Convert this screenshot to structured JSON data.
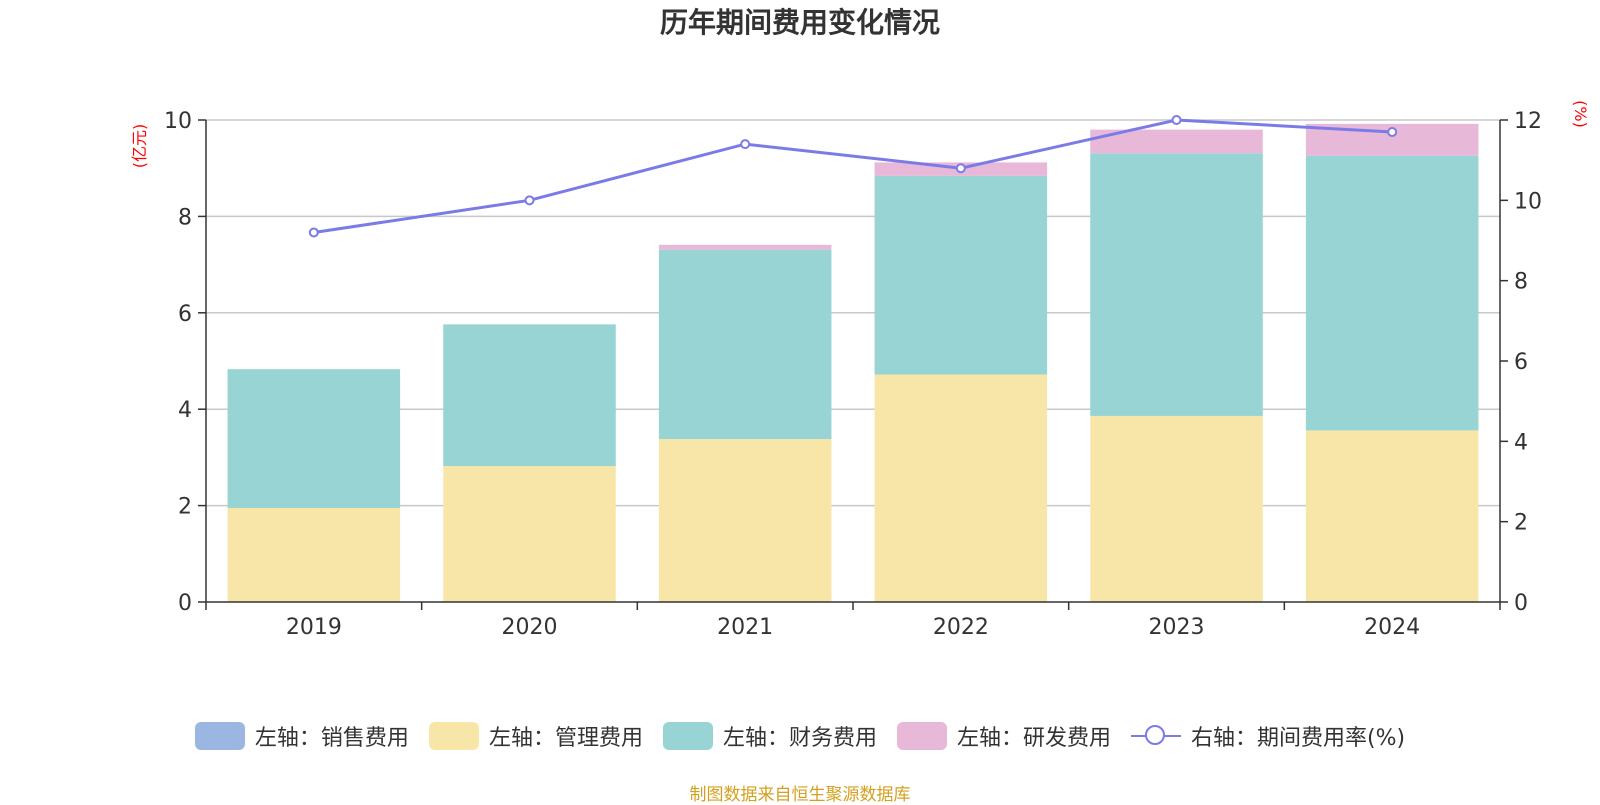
{
  "colors": {
    "sales": "#9cb6e2",
    "admin": "#f8e6a8",
    "finance": "#98d4d4",
    "rd": "#e8b8d8",
    "rate": "#7b7be8",
    "axis_unit": "#ff0000",
    "source": "#d4a020",
    "grid": "#c8c8c8",
    "axis": "#333333"
  },
  "legend": {
    "sales": "左轴：销售费用",
    "admin": "左轴：管理费用",
    "finance": "左轴：财务费用",
    "rd": "左轴：研发费用",
    "rate": "右轴：期间费用率(%)"
  },
  "source_text": "制图数据来自恒生聚源数据库",
  "chart_data": {
    "type": "bar",
    "stacked": true,
    "title": "历年期间费用变化情况",
    "ylabel": "(亿元)",
    "y2label": "(%)",
    "categories": [
      "2019",
      "2020",
      "2021",
      "2022",
      "2023",
      "2024"
    ],
    "ylim": [
      0,
      10
    ],
    "yticks": [
      0,
      2,
      4,
      6,
      8,
      10
    ],
    "y2lim": [
      0,
      12
    ],
    "y2ticks": [
      0,
      2,
      4,
      6,
      8,
      10,
      12
    ],
    "grid": true,
    "legend_position": "bottom",
    "series": [
      {
        "name": "左轴：销售费用",
        "key": "sales",
        "axis": "left",
        "type": "bar",
        "values": [
          0,
          0,
          0,
          0,
          0,
          0
        ]
      },
      {
        "name": "左轴：管理费用",
        "key": "admin",
        "axis": "left",
        "type": "bar",
        "values": [
          1.95,
          2.82,
          3.38,
          4.72,
          3.86,
          3.56
        ]
      },
      {
        "name": "左轴：财务费用",
        "key": "finance",
        "axis": "left",
        "type": "bar",
        "values": [
          2.88,
          2.94,
          3.93,
          4.12,
          5.45,
          5.7
        ]
      },
      {
        "name": "左轴：研发费用",
        "key": "rd",
        "axis": "left",
        "type": "bar",
        "values": [
          0,
          0,
          0.1,
          0.28,
          0.49,
          0.66
        ]
      },
      {
        "name": "右轴：期间费用率(%)",
        "key": "rate",
        "axis": "right",
        "type": "line",
        "values": [
          9.2,
          10.0,
          11.4,
          10.8,
          12.0,
          11.7
        ]
      }
    ]
  }
}
